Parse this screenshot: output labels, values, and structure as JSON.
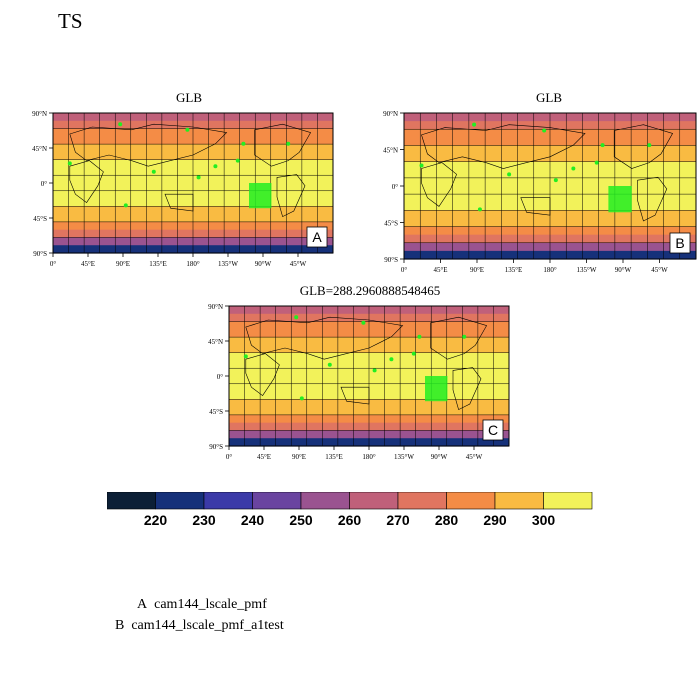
{
  "figure": {
    "title": "TS",
    "legend_lines": [
      {
        "key": "A",
        "name": "cam144_lscale_pmf"
      },
      {
        "key": "B",
        "name": "cam144_lscale_pmf_a1test"
      }
    ]
  },
  "chart_data": {
    "type": "heatmap",
    "variable": "TS",
    "panels": [
      {
        "id": "A",
        "title": "GLB",
        "label": "A"
      },
      {
        "id": "B",
        "title": "GLB",
        "label": "B"
      },
      {
        "id": "C",
        "title": "GLB=288.2960888548465",
        "label": "C"
      }
    ],
    "lat_ticks": [
      "90°N",
      "45°N",
      "0°",
      "45°S",
      "90°S"
    ],
    "lon_ticks": [
      "0°",
      "45°E",
      "90°E",
      "135°E",
      "180°",
      "135°W",
      "90°W",
      "45°W"
    ],
    "lat_range": [
      -90,
      90
    ],
    "lon_range": [
      0,
      360
    ],
    "colorbar": {
      "levels": [
        220,
        230,
        240,
        250,
        260,
        270,
        280,
        290,
        300
      ],
      "labels": [
        "220",
        "230",
        "240",
        "250",
        "260",
        "270",
        "280",
        "290",
        "300"
      ],
      "colors": [
        "#0c1f36",
        "#16317a",
        "#3b3aa8",
        "#6a44a0",
        "#9a5390",
        "#c0607a",
        "#e07560",
        "#f48c46",
        "#f9bb42",
        "#f2f25a"
      ]
    },
    "marker_color": "#22ee22",
    "land_line_color": "#000000"
  }
}
